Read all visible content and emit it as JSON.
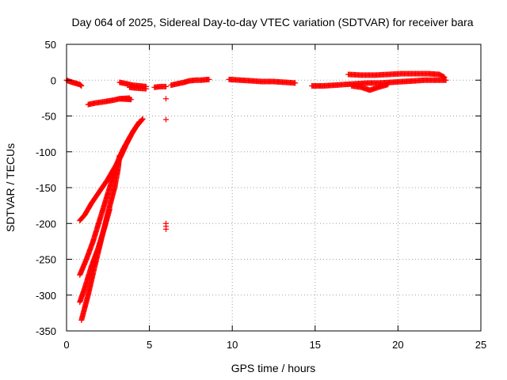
{
  "chart_data": {
    "type": "scatter",
    "title": "Day 064 of 2025, Sidereal Day-to-day VTEC variation (SDTVAR) for receiver bara",
    "xlabel": "GPS time / hours",
    "ylabel": "SDTVAR / TECUs",
    "xlim": [
      0,
      25
    ],
    "ylim": [
      -350,
      50
    ],
    "xticks": [
      0,
      5,
      10,
      15,
      20,
      25
    ],
    "yticks": [
      -350,
      -300,
      -250,
      -200,
      -150,
      -100,
      -50,
      0,
      50
    ],
    "grid": true,
    "marker": "+",
    "color": "#ff0000",
    "series": [
      {
        "name": "SDTVAR",
        "segments": [
          [
            [
              0.0,
              0
            ],
            [
              0.2,
              -2
            ],
            [
              0.5,
              -4
            ],
            [
              0.8,
              -6
            ],
            [
              0.9,
              -8
            ]
          ],
          [
            [
              1.3,
              -34
            ],
            [
              1.7,
              -32
            ],
            [
              2.3,
              -30
            ],
            [
              2.8,
              -28
            ],
            [
              3.2,
              -26
            ],
            [
              3.8,
              -25
            ]
          ],
          [
            [
              3.2,
              -26
            ],
            [
              3.9,
              -27
            ]
          ],
          [
            [
              0.8,
              -196
            ],
            [
              1.1,
              -188
            ],
            [
              1.5,
              -172
            ],
            [
              2.0,
              -155
            ],
            [
              2.5,
              -138
            ],
            [
              3.0,
              -118
            ],
            [
              3.4,
              -97
            ],
            [
              3.8,
              -80
            ],
            [
              4.2,
              -65
            ],
            [
              4.6,
              -54
            ]
          ],
          [
            [
              0.8,
              -272
            ],
            [
              1.2,
              -250
            ],
            [
              1.6,
              -225
            ],
            [
              2.0,
              -195
            ],
            [
              2.4,
              -165
            ],
            [
              2.8,
              -135
            ],
            [
              3.2,
              -110
            ],
            [
              3.6,
              -90
            ],
            [
              4.0,
              -72
            ],
            [
              4.4,
              -58
            ]
          ],
          [
            [
              0.9,
              -335
            ],
            [
              1.3,
              -300
            ],
            [
              1.7,
              -260
            ],
            [
              2.1,
              -222
            ],
            [
              2.5,
              -185
            ],
            [
              2.9,
              -150
            ],
            [
              3.1,
              -125
            ],
            [
              3.2,
              -105
            ]
          ],
          [
            [
              0.8,
              -310
            ],
            [
              1.1,
              -290
            ],
            [
              1.5,
              -260
            ],
            [
              1.9,
              -235
            ],
            [
              2.3,
              -205
            ],
            [
              2.6,
              -180
            ]
          ],
          [
            [
              3.2,
              -3
            ],
            [
              3.6,
              -5
            ],
            [
              4.0,
              -7
            ],
            [
              4.4,
              -8
            ],
            [
              4.8,
              -9
            ]
          ],
          [
            [
              3.8,
              -10
            ],
            [
              4.2,
              -11
            ],
            [
              4.8,
              -12
            ]
          ],
          [
            [
              5.3,
              -10
            ],
            [
              5.7,
              -9
            ],
            [
              6.0,
              -9
            ]
          ],
          [
            [
              6.3,
              -7
            ],
            [
              6.7,
              -5
            ],
            [
              7.1,
              -3
            ],
            [
              7.4,
              -1
            ],
            [
              7.8,
              0
            ],
            [
              8.1,
              0
            ],
            [
              8.6,
              1
            ]
          ],
          [
            [
              9.8,
              1
            ],
            [
              10.5,
              0
            ],
            [
              11.2,
              -1
            ],
            [
              11.8,
              -2
            ],
            [
              12.5,
              -2
            ],
            [
              13.2,
              -3
            ],
            [
              13.8,
              -4
            ]
          ],
          [
            [
              14.8,
              -8
            ],
            [
              15.5,
              -8
            ],
            [
              16.2,
              -7
            ],
            [
              16.8,
              -6
            ],
            [
              17.5,
              -5
            ],
            [
              18.2,
              -4
            ],
            [
              18.9,
              -4
            ],
            [
              19.6,
              -3
            ],
            [
              20.3,
              -2
            ],
            [
              21.0,
              -1
            ],
            [
              21.6,
              0
            ],
            [
              22.2,
              0
            ],
            [
              22.9,
              0
            ]
          ],
          [
            [
              17.0,
              8
            ],
            [
              17.8,
              7
            ],
            [
              18.6,
              7
            ],
            [
              19.4,
              8
            ],
            [
              20.2,
              9
            ],
            [
              21.0,
              9
            ],
            [
              21.8,
              9
            ],
            [
              22.5,
              8
            ],
            [
              22.8,
              4
            ]
          ],
          [
            [
              17.2,
              -8
            ],
            [
              17.8,
              -10
            ],
            [
              18.3,
              -14
            ],
            [
              18.8,
              -10
            ],
            [
              19.4,
              -6
            ]
          ]
        ],
        "isolated_points": [
          [
            6.0,
            -26
          ],
          [
            6.0,
            -55
          ],
          [
            6.0,
            -200
          ],
          [
            6.0,
            -204
          ],
          [
            6.0,
            -208
          ]
        ]
      }
    ]
  }
}
